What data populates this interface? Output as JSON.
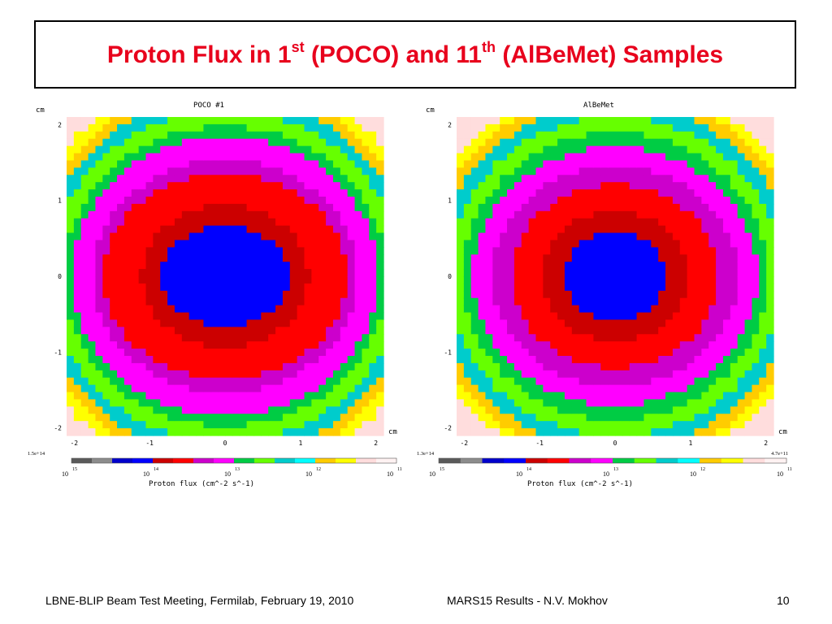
{
  "slide": {
    "title_parts": [
      "Proton Flux in 1",
      "st",
      " (POCO) and 11",
      "th",
      " (AlBeMet) Samples"
    ],
    "footer_left": "LBNE-BLIP Beam Test Meeting, Fermilab, February 19, 2010",
    "footer_center": "MARS15 Results -  N.V. Mokhov",
    "page_number": "10"
  },
  "palette": {
    "title_color": "#e8001c",
    "levels": [
      "#5a5a5a",
      "#8c8c8c",
      "#0000cc",
      "#0000ff",
      "#cc0000",
      "#ff0000",
      "#cc00cc",
      "#ff00ff",
      "#00cc44",
      "#66ff00",
      "#00cccc",
      "#00ffff",
      "#ffcc00",
      "#ffff00",
      "#ffdddd",
      "#fff2f2"
    ]
  },
  "chart_data": [
    {
      "type": "heatmap",
      "title": "POCO #1",
      "xlabel": "cm",
      "ylabel": "cm",
      "xlim": [
        -2.1,
        2.1
      ],
      "ylim": [
        -2.1,
        2.1
      ],
      "x_ticks": [
        "-2",
        "-1",
        "0",
        "1",
        "2"
      ],
      "y_ticks": [
        "2",
        "1",
        "0",
        "-1",
        "-2"
      ],
      "colorbar": {
        "label": "Proton flux (cm^-2 s^-1)",
        "max_label": "1.5e+14",
        "min_label": "",
        "tick_exponents": [
          "15",
          "14",
          "13",
          "12",
          "11"
        ],
        "tick_base": "10",
        "log_range": [
          11,
          15
        ]
      },
      "contour_levels": [
        {
          "level": 0,
          "semi_axes_cm": [
            0.85,
            0.65
          ]
        },
        {
          "level": 1,
          "semi_axes_cm": [
            1.1,
            0.93
          ]
        },
        {
          "level": 2,
          "semi_axes_cm": [
            1.62,
            1.35
          ]
        },
        {
          "level": 3,
          "semi_axes_cm": [
            1.75,
            1.53
          ]
        },
        {
          "level": 4,
          "semi_axes_cm": [
            2.02,
            1.85
          ]
        },
        {
          "level": 5,
          "semi_axes_cm": [
            2.13,
            1.98
          ]
        },
        {
          "level": 6,
          "semi_axes_cm": [
            2.32,
            2.18
          ]
        },
        {
          "level": 7,
          "semi_axes_cm": [
            2.5,
            2.35
          ]
        },
        {
          "level": 8,
          "semi_axes_cm": [
            2.62,
            2.5
          ]
        },
        {
          "level": 9,
          "semi_axes_cm": [
            2.75,
            2.65
          ]
        }
      ]
    },
    {
      "type": "heatmap",
      "title": "AlBeMet",
      "xlabel": "cm",
      "ylabel": "cm",
      "xlim": [
        -2.1,
        2.1
      ],
      "ylim": [
        -2.1,
        2.1
      ],
      "x_ticks": [
        "-2",
        "-1",
        "0",
        "1",
        "2"
      ],
      "y_ticks": [
        "2",
        "1",
        "0",
        "-1",
        "-2"
      ],
      "colorbar": {
        "label": "Proton flux (cm^-2 s^-1)",
        "max_label": "1.3e+14",
        "min_label": "4.7e+11",
        "tick_exponents": [
          "15",
          "14",
          "13",
          "12",
          "11"
        ],
        "tick_base": "10",
        "log_range": [
          11,
          15
        ]
      },
      "contour_levels": [
        {
          "level": 0,
          "semi_axes_cm": [
            0.68,
            0.58
          ]
        },
        {
          "level": 1,
          "semi_axes_cm": [
            0.98,
            0.85
          ]
        },
        {
          "level": 2,
          "semi_axes_cm": [
            1.38,
            1.2
          ]
        },
        {
          "level": 3,
          "semi_axes_cm": [
            1.62,
            1.45
          ]
        },
        {
          "level": 4,
          "semi_axes_cm": [
            1.88,
            1.7
          ]
        },
        {
          "level": 5,
          "semi_axes_cm": [
            2.02,
            1.9
          ]
        },
        {
          "level": 6,
          "semi_axes_cm": [
            2.22,
            2.1
          ]
        },
        {
          "level": 7,
          "semi_axes_cm": [
            2.38,
            2.28
          ]
        },
        {
          "level": 8,
          "semi_axes_cm": [
            2.52,
            2.42
          ]
        },
        {
          "level": 9,
          "semi_axes_cm": [
            2.65,
            2.55
          ]
        }
      ]
    }
  ]
}
